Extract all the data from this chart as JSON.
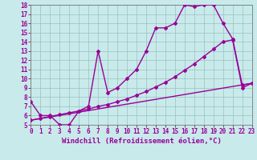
{
  "xlabel": "Windchill (Refroidissement éolien,°C)",
  "bg_color": "#c8eaea",
  "line_color": "#990099",
  "xlim": [
    0,
    23
  ],
  "ylim": [
    5,
    18
  ],
  "xticks": [
    0,
    1,
    2,
    3,
    4,
    5,
    6,
    7,
    8,
    9,
    10,
    11,
    12,
    13,
    14,
    15,
    16,
    17,
    18,
    19,
    20,
    21,
    22,
    23
  ],
  "yticks": [
    5,
    6,
    7,
    8,
    9,
    10,
    11,
    12,
    13,
    14,
    15,
    16,
    17,
    18
  ],
  "line1_x": [
    0,
    1,
    2,
    3,
    4,
    5,
    6,
    7,
    8,
    9,
    10,
    11,
    12,
    13,
    14,
    15,
    16,
    17,
    18,
    19,
    20,
    21,
    22,
    23
  ],
  "line1_y": [
    7.5,
    6.0,
    6.0,
    5.0,
    5.0,
    6.5,
    7.0,
    13.0,
    8.5,
    9.0,
    10.0,
    11.0,
    13.0,
    15.5,
    15.5,
    16.0,
    18.0,
    17.8,
    18.0,
    18.0,
    16.0,
    14.3,
    9.3,
    9.5
  ],
  "line2_x": [
    0,
    1,
    2,
    3,
    4,
    5,
    6,
    7,
    8,
    9,
    10,
    11,
    12,
    13,
    14,
    15,
    16,
    17,
    18,
    19,
    20,
    21,
    22,
    23
  ],
  "line2_y": [
    5.5,
    5.7,
    5.9,
    6.1,
    6.3,
    6.5,
    6.7,
    7.0,
    7.2,
    7.5,
    7.8,
    8.2,
    8.6,
    9.1,
    9.6,
    10.2,
    10.9,
    11.6,
    12.4,
    13.2,
    14.0,
    14.2,
    9.0,
    9.5
  ],
  "line3_x": [
    0,
    23
  ],
  "line3_y": [
    5.5,
    9.5
  ],
  "marker": "D",
  "markersize": 2,
  "linewidth": 1.0,
  "tick_fontsize": 5.5,
  "label_fontsize": 6.5
}
